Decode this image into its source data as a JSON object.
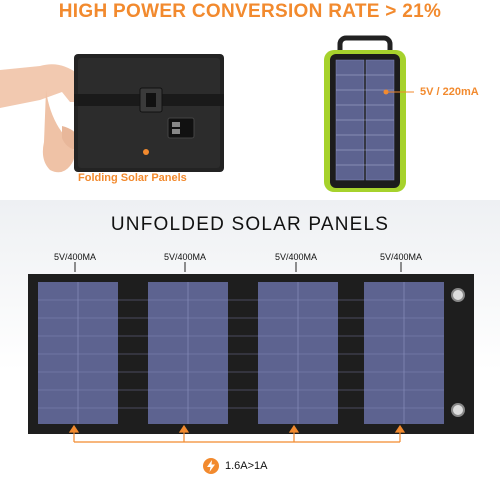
{
  "headline": "HIGH POWER CONVERSION RATE > 21%",
  "folded_caption": "Folding Solar Panels",
  "power_bank_label": "5V / 220mA",
  "unfolded_title": "UNFOLDED SOLAR PANELS",
  "panel_specs": [
    "5V/400MA",
    "5V/400MA",
    "5V/400MA",
    "5V/400MA"
  ],
  "output_current": "1.6A>1A",
  "colors": {
    "accent": "#f28a2e",
    "panel_cell": "#5d6390",
    "fabric": "#1e1e1e",
    "lime": "#a6d22c"
  },
  "icons": [
    "lightning-icon",
    "arrow-up-icon"
  ]
}
